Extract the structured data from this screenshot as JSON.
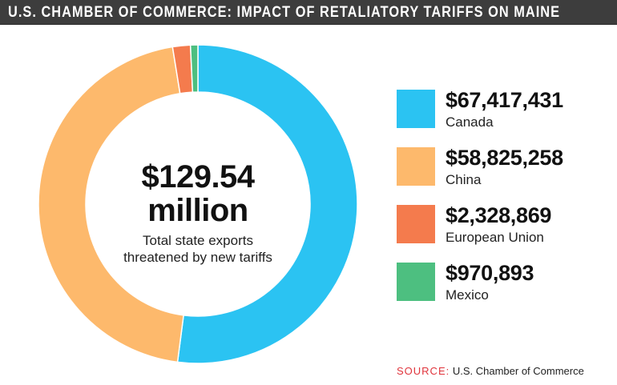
{
  "header": {
    "title": "U.S. CHAMBER OF COMMERCE: IMPACT OF RETALIATORY TARIFFS ON MAINE"
  },
  "chart_data": {
    "type": "pie",
    "title": "U.S. CHAMBER OF COMMERCE: IMPACT OF RETALIATORY TARIFFS ON MAINE",
    "center_value": "$129.54",
    "center_unit": "million",
    "center_caption_1": "Total state exports",
    "center_caption_2": "threatened by new tariffs",
    "slices": [
      {
        "label": "Canada",
        "value": 67417431,
        "display": "$67,417,431",
        "color": "#2bc3f2"
      },
      {
        "label": "China",
        "value": 58825258,
        "display": "$58,825,258",
        "color": "#fdb96c"
      },
      {
        "label": "European Union",
        "value": 2328869,
        "display": "$2,328,869",
        "color": "#f47b4d"
      },
      {
        "label": "Mexico",
        "value": 970893,
        "display": "$970,893",
        "color": "#4dbf80"
      }
    ],
    "legend": "right"
  },
  "source": {
    "key": "SOURCE:",
    "text": "U.S. Chamber of Commerce"
  }
}
